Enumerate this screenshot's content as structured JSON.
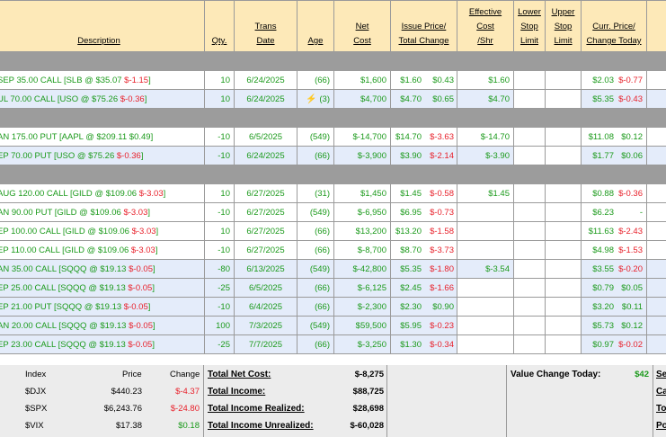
{
  "headers": {
    "description": "Description",
    "qty": "Qty.",
    "trans_date": [
      "Trans",
      "Date"
    ],
    "age": "Age",
    "net_cost": [
      "Net",
      "Cost"
    ],
    "issue_price": [
      "Issue Price/",
      "Total Change"
    ],
    "effective_cost": [
      "Effective",
      "Cost",
      "/Shr"
    ],
    "lower_stop": [
      "Lower",
      "Stop",
      "Limit"
    ],
    "upper_stop": [
      "Upper",
      "Stop",
      "Limit"
    ],
    "curr_price": [
      "Curr. Price/",
      "Change Today"
    ]
  },
  "groups": [
    {
      "rows": [
        {
          "desc": "SEP 35.00 CALL [SLB @ $35.07 ",
          "desc_chg": "$-1.15",
          "desc_tail": "]",
          "desc_chg_color": "neg",
          "qty": "10",
          "date": "6/24/2025",
          "age": "(66)",
          "age_icon": "",
          "net": "$1,600",
          "issue": "$1.60",
          "chg": "$0.43",
          "chg_color": "pos",
          "eff": "$1.60",
          "curr": "$2.03",
          "today": "$-0.77",
          "today_color": "neg",
          "shade": "w"
        },
        {
          "desc": "UL 70.00 CALL [USO @ $75.26 ",
          "desc_chg": "$-0.36",
          "desc_tail": "]",
          "desc_chg_color": "neg",
          "qty": "10",
          "date": "6/24/2025",
          "age": "(3)",
          "age_icon": "⚡",
          "net": "$4,700",
          "issue": "$4.70",
          "chg": "$0.65",
          "chg_color": "pos",
          "eff": "$4.70",
          "curr": "$5.35",
          "today": "$-0.43",
          "today_color": "neg",
          "shade": "b"
        }
      ]
    },
    {
      "rows": [
        {
          "desc": "AN 175.00 PUT [AAPL @ $209.11 ",
          "desc_chg": "$0.49",
          "desc_tail": "]",
          "desc_chg_color": "pos",
          "qty": "-10",
          "date": "6/5/2025",
          "age": "(549)",
          "age_icon": "",
          "net": "$-14,700",
          "issue": "$14.70",
          "chg": "$-3.63",
          "chg_color": "neg",
          "eff": "$-14.70",
          "curr": "$11.08",
          "today": "$0.12",
          "today_color": "pos",
          "shade": "w"
        },
        {
          "desc": "EP 70.00 PUT [USO @ $75.26 ",
          "desc_chg": "$-0.36",
          "desc_tail": "]",
          "desc_chg_color": "neg",
          "qty": "-10",
          "date": "6/24/2025",
          "age": "(66)",
          "age_icon": "",
          "net": "$-3,900",
          "issue": "$3.90",
          "chg": "$-2.14",
          "chg_color": "neg",
          "eff": "$-3.90",
          "curr": "$1.77",
          "today": "$0.06",
          "today_color": "pos",
          "shade": "b"
        }
      ]
    },
    {
      "rows": [
        {
          "desc": "AUG 120.00 CALL [GILD @ $109.06 ",
          "desc_chg": "$-3.03",
          "desc_tail": "]",
          "desc_chg_color": "neg",
          "qty": "10",
          "date": "6/27/2025",
          "age": "(31)",
          "age_icon": "",
          "net": "$1,450",
          "issue": "$1.45",
          "chg": "$-0.58",
          "chg_color": "neg",
          "eff": "$1.45",
          "curr": "$0.88",
          "today": "$-0.36",
          "today_color": "neg",
          "shade": "w"
        },
        {
          "desc": "AN 90.00 PUT [GILD @ $109.06 ",
          "desc_chg": "$-3.03",
          "desc_tail": "]",
          "desc_chg_color": "neg",
          "qty": "-10",
          "date": "6/27/2025",
          "age": "(549)",
          "age_icon": "",
          "net": "$-6,950",
          "issue": "$6.95",
          "chg": "$-0.73",
          "chg_color": "neg",
          "eff": "",
          "curr": "$6.23",
          "today": "-",
          "today_color": "",
          "shade": "w"
        },
        {
          "desc": "EP 100.00 CALL [GILD @ $109.06 ",
          "desc_chg": "$-3.03",
          "desc_tail": "]",
          "desc_chg_color": "neg",
          "qty": "10",
          "date": "6/27/2025",
          "age": "(66)",
          "age_icon": "",
          "net": "$13,200",
          "issue": "$13.20",
          "chg": "$-1.58",
          "chg_color": "neg",
          "eff": "",
          "curr": "$11.63",
          "today": "$-2.43",
          "today_color": "neg",
          "shade": "w"
        },
        {
          "desc": "EP 110.00 CALL [GILD @ $109.06 ",
          "desc_chg": "$-3.03",
          "desc_tail": "]",
          "desc_chg_color": "neg",
          "qty": "-10",
          "date": "6/27/2025",
          "age": "(66)",
          "age_icon": "",
          "net": "$-8,700",
          "issue": "$8.70",
          "chg": "$-3.73",
          "chg_color": "neg",
          "eff": "",
          "curr": "$4.98",
          "today": "$-1.53",
          "today_color": "neg",
          "shade": "w"
        },
        {
          "desc": "AN 35.00 CALL [SQQQ @ $19.13 ",
          "desc_chg": "$-0.05",
          "desc_tail": "]",
          "desc_chg_color": "neg",
          "qty": "-80",
          "date": "6/13/2025",
          "age": "(549)",
          "age_icon": "",
          "net": "$-42,800",
          "issue": "$5.35",
          "chg": "$-1.80",
          "chg_color": "neg",
          "eff": "$-3.54",
          "curr": "$3.55",
          "today": "$-0.20",
          "today_color": "neg",
          "shade": "b"
        },
        {
          "desc": "EP 25.00 CALL [SQQQ @ $19.13 ",
          "desc_chg": "$-0.05",
          "desc_tail": "]",
          "desc_chg_color": "neg",
          "qty": "-25",
          "date": "6/5/2025",
          "age": "(66)",
          "age_icon": "",
          "net": "$-6,125",
          "issue": "$2.45",
          "chg": "$-1.66",
          "chg_color": "neg",
          "eff": "",
          "curr": "$0.79",
          "today": "$0.05",
          "today_color": "pos",
          "shade": "b"
        },
        {
          "desc": "EP 21.00 PUT [SQQQ @ $19.13 ",
          "desc_chg": "$-0.05",
          "desc_tail": "]",
          "desc_chg_color": "neg",
          "qty": "-10",
          "date": "6/4/2025",
          "age": "(66)",
          "age_icon": "",
          "net": "$-2,300",
          "issue": "$2.30",
          "chg": "$0.90",
          "chg_color": "pos",
          "eff": "",
          "curr": "$3.20",
          "today": "$0.11",
          "today_color": "pos",
          "shade": "b"
        },
        {
          "desc": "AN 20.00 CALL [SQQQ @ $19.13 ",
          "desc_chg": "$-0.05",
          "desc_tail": "]",
          "desc_chg_color": "neg",
          "qty": "100",
          "date": "7/3/2025",
          "age": "(549)",
          "age_icon": "",
          "net": "$59,500",
          "issue": "$5.95",
          "chg": "$-0.23",
          "chg_color": "neg",
          "eff": "",
          "curr": "$5.73",
          "today": "$0.12",
          "today_color": "pos",
          "shade": "b"
        },
        {
          "desc": "EP 23.00 CALL [SQQQ @ $19.13 ",
          "desc_chg": "$-0.05",
          "desc_tail": "]",
          "desc_chg_color": "neg",
          "qty": "-25",
          "date": "7/7/2025",
          "age": "(66)",
          "age_icon": "",
          "net": "$-3,250",
          "issue": "$1.30",
          "chg": "$-0.34",
          "chg_color": "neg",
          "eff": "",
          "curr": "$0.97",
          "today": "$-0.02",
          "today_color": "neg",
          "shade": "b"
        }
      ]
    }
  ],
  "index_table": {
    "headers": {
      "index": "Index",
      "price": "Price",
      "change": "Change"
    },
    "rows": [
      {
        "name": "$DJX",
        "price": "$440.23",
        "change": "$-4.37",
        "color": "neg"
      },
      {
        "name": "$SPX",
        "price": "$6,243.76",
        "change": "$-24.80",
        "color": "neg"
      },
      {
        "name": "$VIX",
        "price": "$17.38",
        "change": "$0.18",
        "color": "pos"
      }
    ]
  },
  "totals": [
    {
      "label": "Total Net Cost:",
      "value": "$-8,275"
    },
    {
      "label": "Total Income:",
      "value": "$88,725"
    },
    {
      "label": "Total Income Realized:",
      "value": "$28,698"
    },
    {
      "label": "Total Income Unrealized:",
      "value": "$-60,028"
    }
  ],
  "value_change": {
    "label": "Value Change Today:",
    "value": "$42"
  },
  "right_edge_labels": [
    "Se",
    "Ca",
    "To",
    "Po"
  ],
  "colors": {
    "header_bg": "#fde9b8",
    "alt_row": "#e4ecfa",
    "separator": "#9c9c9c",
    "neg": "#e8212b",
    "pos": "#1b9a1b"
  }
}
